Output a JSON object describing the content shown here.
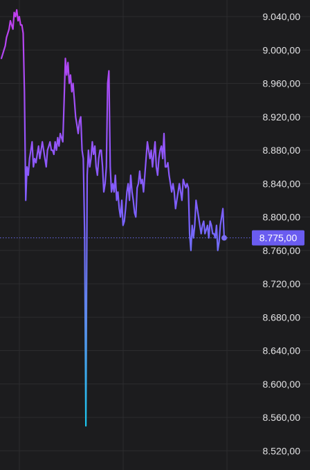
{
  "chart_data": {
    "type": "line",
    "title": "",
    "xlabel": "",
    "ylabel": "",
    "ylim": [
      8520,
      9060
    ],
    "y_ticks": [
      9040,
      9000,
      8960,
      8920,
      8880,
      8840,
      8800,
      8760,
      8720,
      8680,
      8640,
      8600,
      8560,
      8520
    ],
    "y_tick_labels": [
      "9.040,00",
      "9.000,00",
      "8.960,00",
      "8.920,00",
      "8.880,00",
      "8.840,00",
      "8.800,00",
      "8.760,00",
      "8.720,00",
      "8.680,00",
      "8.640,00",
      "8.600,00",
      "8.560,00",
      "8.520,00"
    ],
    "grid": true,
    "current_price": 8775,
    "current_price_label": "8.775,00",
    "series": [
      {
        "values": [
          8990,
          8995,
          9000,
          9005,
          9015,
          9020,
          9025,
          9035,
          9030,
          9025,
          9045,
          9040,
          9048,
          9035,
          9040,
          9030,
          9030,
          9020,
          8950,
          8820,
          8860,
          8850,
          8870,
          8880,
          8890,
          8860,
          8870,
          8865,
          8875,
          8885,
          8870,
          8880,
          8890,
          8880,
          8870,
          8860,
          8880,
          8885,
          8890,
          8880,
          8880,
          8875,
          8890,
          8880,
          8895,
          8885,
          8900,
          8895,
          8890,
          8940,
          8990,
          8970,
          8985,
          8960,
          8970,
          8950,
          8960,
          8940,
          8920,
          8910,
          8900,
          8915,
          8920,
          8880,
          8870,
          8780,
          8550,
          8850,
          8880,
          8860,
          8870,
          8890,
          8875,
          8885,
          8860,
          8850,
          8870,
          8880,
          8880,
          8860,
          8830,
          8840,
          8860,
          8960,
          8975,
          8860,
          8830,
          8840,
          8830,
          8850,
          8820,
          8830,
          8810,
          8800,
          8820,
          8790,
          8795,
          8810,
          8830,
          8840,
          8820,
          8850,
          8830,
          8820,
          8805,
          8800,
          8835,
          8840,
          8855,
          8840,
          8845,
          8830,
          8850,
          8870,
          8890,
          8880,
          8870,
          8880,
          8860,
          8875,
          8890,
          8860,
          8850,
          8870,
          8880,
          8885,
          8870,
          8900,
          8860,
          8860,
          8865,
          8850,
          8840,
          8830,
          8840,
          8830,
          8810,
          8820,
          8830,
          8840,
          8830,
          8820,
          8845,
          8840,
          8835,
          8840,
          8835,
          8780,
          8760,
          8790,
          8775,
          8790,
          8820,
          8810,
          8800,
          8790,
          8780,
          8790,
          8795,
          8780,
          8785,
          8790,
          8775,
          8795,
          8790,
          8780,
          8780,
          8775,
          8790,
          8760,
          8770,
          8790,
          8800,
          8810,
          8775
        ]
      }
    ]
  }
}
